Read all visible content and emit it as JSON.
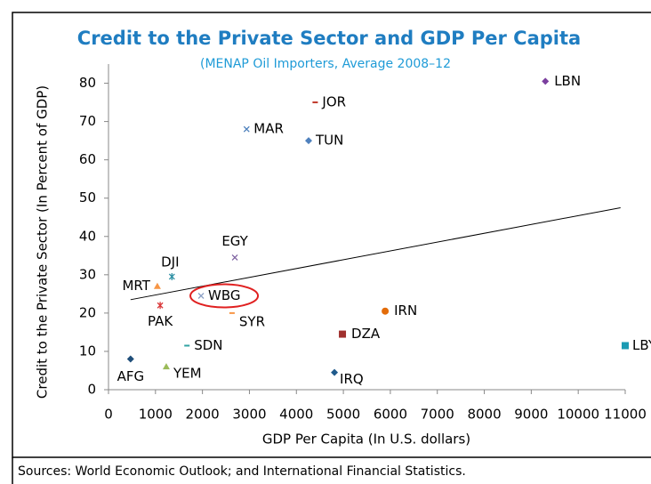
{
  "chart_data": {
    "type": "scatter",
    "title": "Credit to the Private Sector and GDP Per Capita",
    "subtitle": "(MENAP Oil Importers, Average 2008–12",
    "x_label": "GDP Per Capita (In U.S. dollars)",
    "y_label": "Credit to the Private Sector (In Percent of GDP)",
    "source": "Sources: World Economic Outlook; and International Financial Statistics.",
    "xlim": [
      0,
      11000
    ],
    "ylim": [
      0,
      85
    ],
    "xticks": [
      0,
      1000,
      2000,
      3000,
      4000,
      5000,
      6000,
      7000,
      8000,
      9000,
      10000,
      11000
    ],
    "yticks": [
      0,
      10,
      20,
      30,
      40,
      50,
      60,
      70,
      80
    ],
    "grid": false,
    "points": [
      {
        "label": "LBN",
        "x": 9300,
        "y": 80.5,
        "marker": "diamond",
        "color": "#7b3f9e"
      },
      {
        "label": "JOR",
        "x": 4400,
        "y": 75,
        "marker": "dash",
        "color": "#c0392b"
      },
      {
        "label": "MAR",
        "x": 2940,
        "y": 68,
        "marker": "x",
        "color": "#4a7ebb"
      },
      {
        "label": "TUN",
        "x": 4260,
        "y": 65,
        "marker": "diamond",
        "color": "#4f81bd"
      },
      {
        "label": "EGY",
        "x": 2690,
        "y": 34.5,
        "marker": "x",
        "color": "#8064a2"
      },
      {
        "label": "DJI",
        "x": 1350,
        "y": 29.5,
        "marker": "asterisk",
        "color": "#2c8fa3"
      },
      {
        "label": "MRT",
        "x": 1040,
        "y": 27,
        "marker": "triangle",
        "color": "#f79646"
      },
      {
        "label": "WBG",
        "x": 1970,
        "y": 24.5,
        "marker": "x",
        "color": "#8ea2c6"
      },
      {
        "label": "PAK",
        "x": 1100,
        "y": 22,
        "marker": "asterisk",
        "color": "#d9383a"
      },
      {
        "label": "SYR",
        "x": 2630,
        "y": 20,
        "marker": "dash",
        "color": "#f79646"
      },
      {
        "label": "IRN",
        "x": 5890,
        "y": 20.5,
        "marker": "circle",
        "color": "#e36c09"
      },
      {
        "label": "DZA",
        "x": 4980,
        "y": 14.5,
        "marker": "square",
        "color": "#a0302e"
      },
      {
        "label": "SDN",
        "x": 1670,
        "y": 11.5,
        "marker": "dash",
        "color": "#31a3a3"
      },
      {
        "label": "LBY",
        "x": 11000,
        "y": 11.5,
        "marker": "square",
        "color": "#1b9bb3"
      },
      {
        "label": "AFG",
        "x": 470,
        "y": 8,
        "marker": "diamond",
        "color": "#1f4e79"
      },
      {
        "label": "YEM",
        "x": 1230,
        "y": 6,
        "marker": "triangle",
        "color": "#9bbb59"
      },
      {
        "label": "IRQ",
        "x": 4810,
        "y": 4.5,
        "marker": "diamond",
        "color": "#1f5a8c"
      }
    ],
    "trendline": {
      "x": [
        470,
        10900
      ],
      "y": [
        23.5,
        47.5
      ],
      "color": "#000000"
    }
  }
}
